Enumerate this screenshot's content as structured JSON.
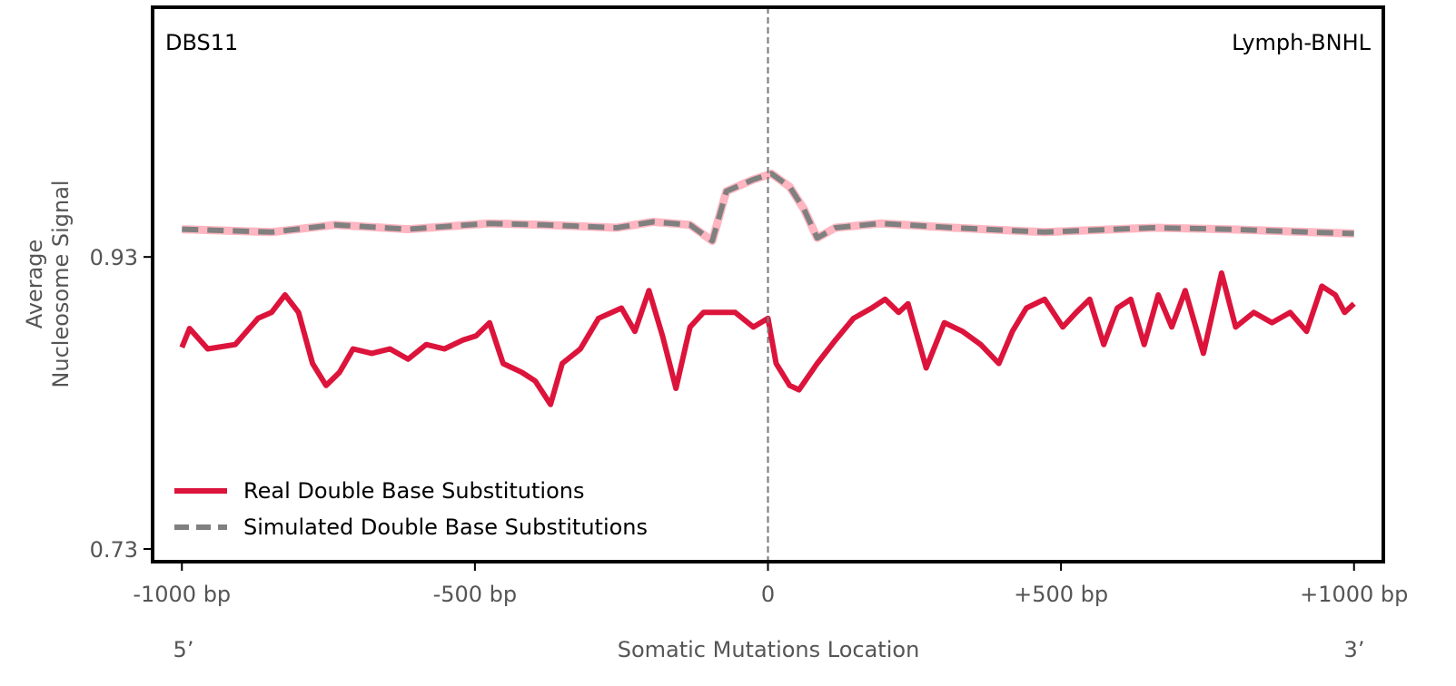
{
  "chart_data": {
    "type": "line",
    "title_left": "DBS11",
    "title_right": "Lymph-BNHL",
    "xlabel": "Somatic Mutations Location",
    "ylabel": [
      "Average",
      "Nucleosome Signal"
    ],
    "x_end_labels": [
      "5’",
      "3’"
    ],
    "xlim": [
      -1050,
      1050
    ],
    "ylim": [
      0.7213,
      1.101
    ],
    "xticks": [
      -1000,
      -500,
      0,
      500,
      1000
    ],
    "xtick_labels": [
      "-1000 bp",
      "-500 bp",
      "0",
      "+500 bp",
      "+1000 bp"
    ],
    "yticks": [
      0.73,
      0.93
    ],
    "ytick_labels": [
      "0.73",
      "0.93"
    ],
    "vline_x": 0,
    "grid": false,
    "legend_position": "bottom-left",
    "series": [
      {
        "name": "Real Double Base Substitutions",
        "color": "#dc143c",
        "style": "solid",
        "x": [
          -1000,
          -987,
          -956,
          -909,
          -870,
          -847,
          -824,
          -801,
          -777,
          -754,
          -731,
          -708,
          -676,
          -645,
          -614,
          -583,
          -552,
          -521,
          -498,
          -475,
          -452,
          -420,
          -397,
          -371,
          -351,
          -320,
          -289,
          -250,
          -227,
          -203,
          -180,
          -157,
          -133,
          -110,
          -87,
          -56,
          -25,
          0,
          14,
          37,
          53,
          84,
          115,
          146,
          177,
          200,
          223,
          239,
          270,
          301,
          332,
          363,
          394,
          417,
          441,
          472,
          503,
          526,
          549,
          573,
          596,
          619,
          642,
          666,
          689,
          712,
          743,
          774,
          798,
          829,
          860,
          891,
          919,
          945,
          968,
          984,
          1000
        ],
        "y": [
          0.868,
          0.881,
          0.867,
          0.87,
          0.888,
          0.892,
          0.904,
          0.892,
          0.857,
          0.842,
          0.851,
          0.867,
          0.864,
          0.867,
          0.86,
          0.87,
          0.867,
          0.873,
          0.876,
          0.885,
          0.857,
          0.851,
          0.845,
          0.829,
          0.857,
          0.867,
          0.888,
          0.895,
          0.879,
          0.907,
          0.876,
          0.84,
          0.882,
          0.892,
          0.892,
          0.892,
          0.882,
          0.888,
          0.857,
          0.842,
          0.839,
          0.857,
          0.873,
          0.888,
          0.895,
          0.901,
          0.892,
          0.898,
          0.854,
          0.885,
          0.879,
          0.87,
          0.857,
          0.879,
          0.895,
          0.901,
          0.882,
          0.892,
          0.901,
          0.87,
          0.895,
          0.901,
          0.87,
          0.904,
          0.882,
          0.907,
          0.864,
          0.919,
          0.882,
          0.892,
          0.885,
          0.892,
          0.879,
          0.91,
          0.904,
          0.892,
          0.898
        ]
      },
      {
        "name": "Simulated Double Base Substitutions",
        "color": "#808080",
        "underlay_color": "#ffb6c1",
        "style": "dashed",
        "x": [
          -1000,
          -847,
          -739,
          -614,
          -475,
          -382,
          -258,
          -196,
          -133,
          -95,
          -71,
          -25,
          6,
          37,
          61,
          84,
          115,
          192,
          317,
          472,
          658,
          782,
          922,
          1000
        ],
        "y": [
          0.949,
          0.947,
          0.952,
          0.949,
          0.953,
          0.952,
          0.95,
          0.954,
          0.952,
          0.941,
          0.975,
          0.983,
          0.987,
          0.978,
          0.963,
          0.943,
          0.95,
          0.953,
          0.95,
          0.947,
          0.95,
          0.949,
          0.947,
          0.946
        ]
      }
    ]
  }
}
